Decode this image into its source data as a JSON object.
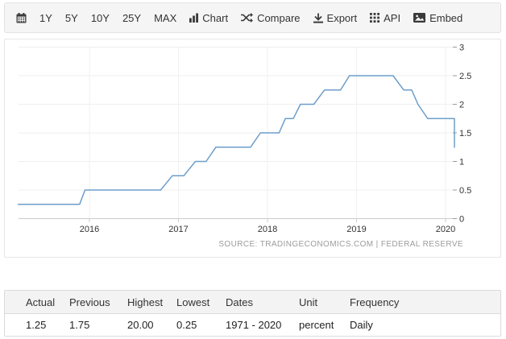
{
  "toolbar": {
    "ranges": [
      {
        "label": "1Y"
      },
      {
        "label": "5Y"
      },
      {
        "label": "10Y"
      },
      {
        "label": "25Y"
      },
      {
        "label": "MAX"
      }
    ],
    "actions": [
      {
        "id": "chart",
        "icon": "bar-chart-icon",
        "label": "Chart"
      },
      {
        "id": "compare",
        "icon": "compare-icon",
        "label": "Compare"
      },
      {
        "id": "export",
        "icon": "download-icon",
        "label": "Export"
      },
      {
        "id": "api",
        "icon": "grid-icon",
        "label": "API"
      },
      {
        "id": "embed",
        "icon": "image-icon",
        "label": "Embed"
      }
    ]
  },
  "chart": {
    "source_text": "SOURCE: TRADINGECONOMICS.COM | FEDERAL RESERVE",
    "line_color": "#6d9ecb",
    "grid_color": "#efefef",
    "axis_color": "#cccccc"
  },
  "chart_data": {
    "type": "line",
    "line_style": "step",
    "series": [
      {
        "name": "fed-funds-rate",
        "points": [
          [
            2015.2,
            0.25
          ],
          [
            2015.89,
            0.25
          ],
          [
            2015.95,
            0.5
          ],
          [
            2016.8,
            0.5
          ],
          [
            2016.93,
            0.75
          ],
          [
            2017.06,
            0.75
          ],
          [
            2017.19,
            1.0
          ],
          [
            2017.31,
            1.0
          ],
          [
            2017.42,
            1.25
          ],
          [
            2017.81,
            1.25
          ],
          [
            2017.92,
            1.5
          ],
          [
            2018.13,
            1.5
          ],
          [
            2018.2,
            1.75
          ],
          [
            2018.29,
            1.75
          ],
          [
            2018.37,
            2.0
          ],
          [
            2018.52,
            2.0
          ],
          [
            2018.64,
            2.25
          ],
          [
            2018.82,
            2.25
          ],
          [
            2018.92,
            2.5
          ],
          [
            2019.41,
            2.5
          ],
          [
            2019.53,
            2.25
          ],
          [
            2019.62,
            2.25
          ],
          [
            2019.69,
            2.0
          ],
          [
            2019.8,
            1.75
          ],
          [
            2020.1,
            1.75
          ],
          [
            2020.1,
            1.25
          ]
        ]
      }
    ],
    "xticks": [
      2016,
      2017,
      2018,
      2019,
      2020
    ],
    "yticks": [
      0,
      0.5,
      1,
      1.5,
      2,
      2.5,
      3
    ],
    "ylim": [
      0,
      3
    ],
    "xlim": [
      2015.2,
      2020.12
    ],
    "grid": true,
    "legend": false,
    "y_axis_side": "right"
  },
  "table": {
    "headers": [
      "Actual",
      "Previous",
      "Highest",
      "Lowest",
      "Dates",
      "Unit",
      "Frequency"
    ],
    "row": [
      "1.25",
      "1.75",
      "20.00",
      "0.25",
      "1971 - 2020",
      "percent",
      "Daily"
    ]
  }
}
